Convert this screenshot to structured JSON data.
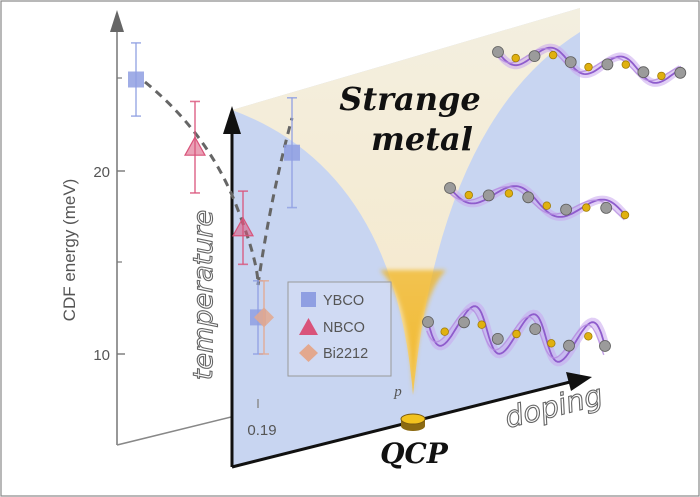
{
  "plot": {
    "ylabel": "CDF energy (meV)",
    "y_ticks": [
      "10",
      "20"
    ],
    "x_tick": "0.19",
    "p_label": "p"
  },
  "legend": [
    {
      "name": "YBCO",
      "marker": "square",
      "color": "#8f9fe2"
    },
    {
      "name": "NBCO",
      "marker": "triangle",
      "color": "#d9537a"
    },
    {
      "name": "Bi2212",
      "marker": "diamond",
      "color": "#e3a88e"
    }
  ],
  "diagram": {
    "temperature_label": "temperature",
    "doping_label": "doping",
    "phase_label_line1": "Strange",
    "phase_label_line2": "metal",
    "qcp_label": "QCP"
  },
  "colors": {
    "plane": "#c9d6f1",
    "strange_metal": "#f4efe0",
    "qcp_glow": "#f2b41d",
    "wave": "#9a6ad0",
    "atom_gray": "#9a9a9a",
    "atom_gold": "#e0b10f"
  },
  "chart_data": {
    "type": "scatter",
    "ylabel": "CDF energy (meV)",
    "ylim": [
      6,
      27
    ],
    "series": [
      {
        "name": "YBCO",
        "points": [
          {
            "y": 25.0,
            "err": 2.0
          },
          {
            "y": 21.0,
            "err": 3.0
          },
          {
            "y": 12.0,
            "err": 2.0
          }
        ]
      },
      {
        "name": "NBCO",
        "points": [
          {
            "y": 21.3,
            "err": 2.5
          },
          {
            "y": 16.9,
            "err": 2.0
          }
        ]
      },
      {
        "name": "Bi2212",
        "points": [
          {
            "y": 12.0,
            "err": 2.0
          }
        ]
      }
    ]
  }
}
